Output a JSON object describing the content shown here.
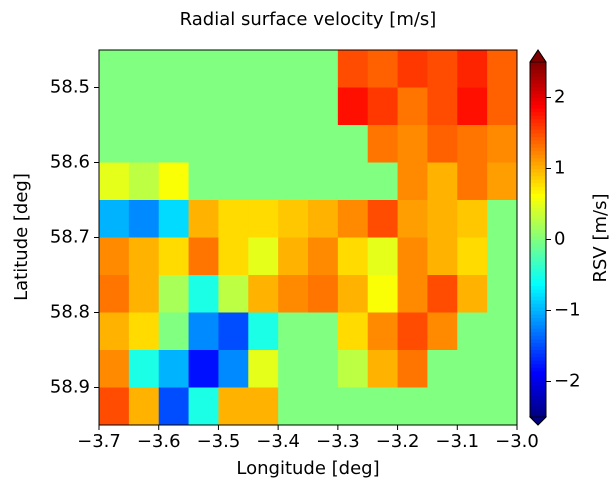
{
  "chart_data": {
    "type": "heatmap",
    "title": "Radial surface velocity [m/s]",
    "xlabel": "Longitude [deg]",
    "ylabel": "Latitude [deg]",
    "colorbar_label": "RSV [m/s]",
    "colormap": "jet",
    "x_edges": [
      -3.7,
      -3.65,
      -3.6,
      -3.55,
      -3.5,
      -3.45,
      -3.4,
      -3.35,
      -3.3,
      -3.25,
      -3.2,
      -3.15,
      -3.1,
      -3.05,
      -3.0
    ],
    "y_edges": [
      58.45,
      58.5,
      58.55,
      58.6,
      58.65,
      58.7,
      58.75,
      58.8,
      58.85,
      58.9,
      58.95
    ],
    "z": [
      [
        0,
        0,
        0,
        0,
        0,
        0,
        0,
        0,
        1.5,
        1.4,
        1.6,
        1.5,
        1.7,
        1.4
      ],
      [
        0,
        0,
        0,
        0,
        0,
        0,
        0,
        0,
        1.8,
        1.6,
        1.3,
        1.5,
        1.8,
        1.4
      ],
      [
        0,
        0,
        0,
        0,
        0,
        0,
        0,
        0,
        0,
        1.3,
        1.2,
        1.4,
        1.3,
        1.2
      ],
      [
        0.5,
        0.3,
        0.6,
        0,
        0,
        0,
        0,
        0,
        0,
        0,
        1.2,
        1.0,
        1.3,
        1.1
      ],
      [
        -1.0,
        -1.2,
        -0.8,
        1.0,
        0.8,
        0.8,
        0.9,
        1.0,
        1.2,
        1.5,
        1.1,
        1.0,
        0.9,
        0
      ],
      [
        1.2,
        1.0,
        0.8,
        1.3,
        0.8,
        0.5,
        1.0,
        1.2,
        0.8,
        0.5,
        1.2,
        1.0,
        0.8,
        0
      ],
      [
        1.3,
        1.0,
        0.2,
        -0.5,
        0.3,
        1.0,
        1.2,
        1.3,
        1.0,
        0.6,
        1.2,
        1.5,
        1.0,
        0
      ],
      [
        1.0,
        0.8,
        0.0,
        -1.2,
        -1.5,
        -0.5,
        0,
        0,
        0.8,
        1.2,
        1.5,
        1.2,
        0,
        0
      ],
      [
        1.2,
        -0.5,
        -1.0,
        -1.8,
        -1.2,
        0.5,
        0,
        0,
        0.3,
        1.0,
        1.3,
        0,
        0,
        0
      ],
      [
        1.5,
        1.0,
        -1.5,
        -0.5,
        1.0,
        1.0,
        0,
        0,
        0,
        0,
        0,
        0,
        0,
        0
      ]
    ],
    "xlim": [
      -3.7,
      -3.0
    ],
    "ylim": [
      58.45,
      58.95
    ],
    "y_inverted": true,
    "clim": [
      -2.5,
      2.5
    ],
    "xticks": [
      {
        "value": -3.7,
        "label": "−3.7"
      },
      {
        "value": -3.6,
        "label": "−3.6"
      },
      {
        "value": -3.5,
        "label": "−3.5"
      },
      {
        "value": -3.4,
        "label": "−3.4"
      },
      {
        "value": -3.3,
        "label": "−3.3"
      },
      {
        "value": -3.2,
        "label": "−3.2"
      },
      {
        "value": -3.1,
        "label": "−3.1"
      },
      {
        "value": -3.0,
        "label": "−3.0"
      }
    ],
    "yticks": [
      58.5,
      58.6,
      58.7,
      58.8,
      58.9
    ],
    "cticks": [
      {
        "value": -2,
        "label": "−2"
      },
      {
        "value": -1,
        "label": "−1"
      },
      0,
      1,
      2
    ]
  }
}
